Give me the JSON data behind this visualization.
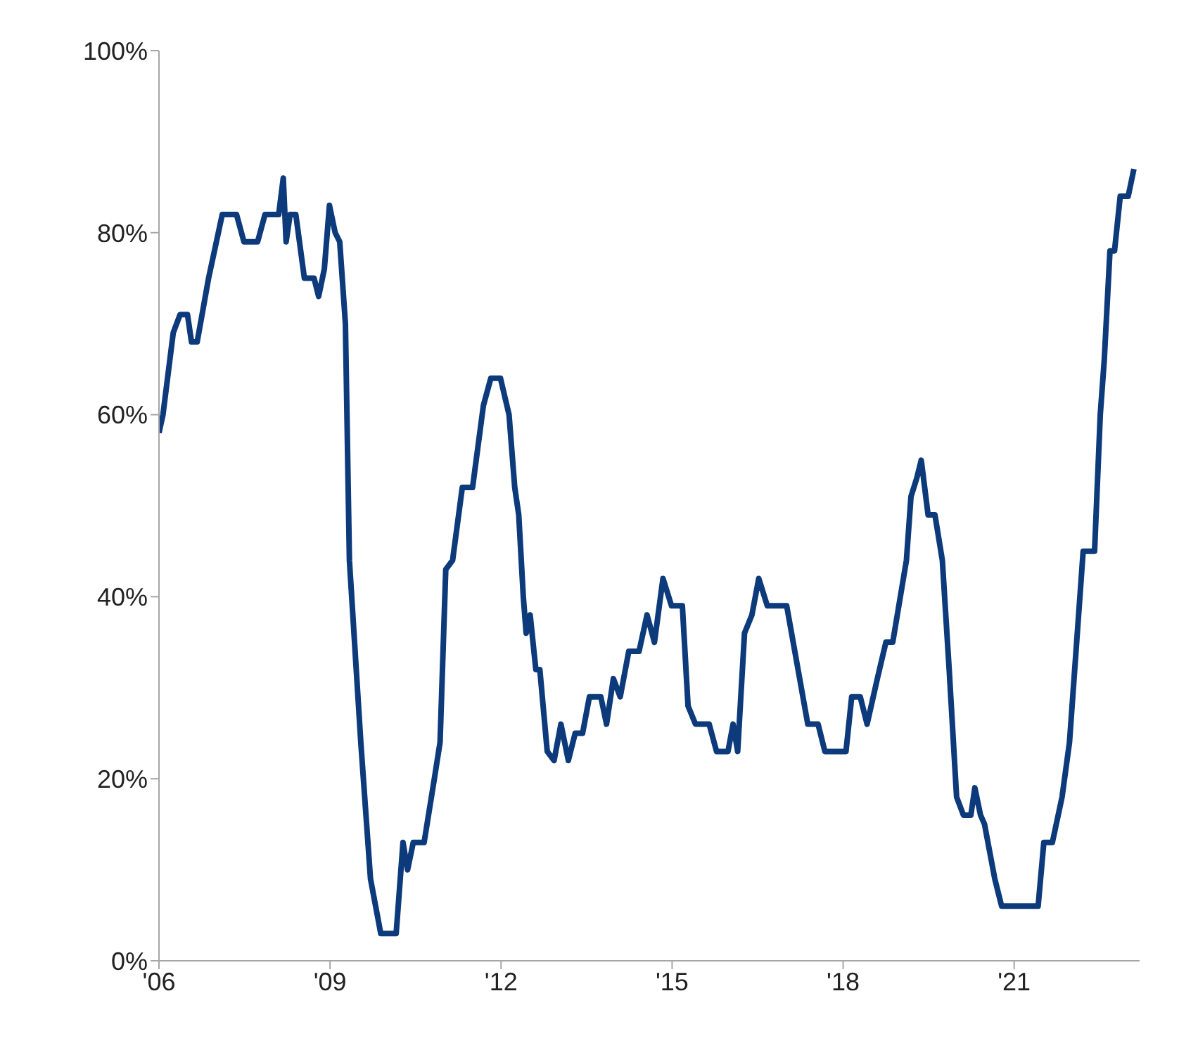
{
  "chart_data": {
    "type": "line",
    "x": [
      2006.0,
      2006.07,
      2006.25,
      2006.37,
      2006.5,
      2006.57,
      2006.67,
      2006.87,
      2007.11,
      2007.36,
      2007.49,
      2007.73,
      2007.86,
      2008.1,
      2008.18,
      2008.23,
      2008.3,
      2008.4,
      2008.55,
      2008.72,
      2008.8,
      2008.9,
      2008.99,
      2009.09,
      2009.17,
      2009.27,
      2009.34,
      2009.54,
      2009.71,
      2009.89,
      2010.16,
      2010.28,
      2010.36,
      2010.46,
      2010.65,
      2010.83,
      2010.93,
      2011.03,
      2011.15,
      2011.32,
      2011.5,
      2011.69,
      2011.82,
      2011.99,
      2012.14,
      2012.24,
      2012.31,
      2012.39,
      2012.44,
      2012.51,
      2012.61,
      2012.68,
      2012.81,
      2012.93,
      2013.05,
      2013.18,
      2013.3,
      2013.43,
      2013.55,
      2013.75,
      2013.85,
      2013.97,
      2014.09,
      2014.24,
      2014.42,
      2014.56,
      2014.69,
      2014.84,
      2014.99,
      2015.18,
      2015.28,
      2015.41,
      2015.65,
      2015.78,
      2015.98,
      2016.07,
      2016.15,
      2016.27,
      2016.4,
      2016.52,
      2016.67,
      2017.01,
      2017.38,
      2017.56,
      2017.68,
      2018.05,
      2018.15,
      2018.3,
      2018.42,
      2018.6,
      2018.75,
      2018.87,
      2019.11,
      2019.19,
      2019.29,
      2019.37,
      2019.49,
      2019.61,
      2019.74,
      2019.86,
      2019.99,
      2020.11,
      2020.24,
      2020.31,
      2020.41,
      2020.48,
      2020.66,
      2020.78,
      2021.42,
      2021.52,
      2021.67,
      2021.84,
      2021.97,
      2022.21,
      2022.41,
      2022.51,
      2022.58,
      2022.68,
      2022.76,
      2022.86,
      2023.0,
      2023.1
    ],
    "series": [
      {
        "color": "#0c3a7a",
        "values": [
          58,
          60,
          69,
          71,
          71,
          68,
          68,
          75,
          82,
          82,
          79,
          79,
          82,
          82,
          86,
          79,
          82,
          82,
          75,
          75,
          73,
          76,
          83,
          80,
          79,
          70,
          44,
          24,
          9,
          3,
          3,
          13,
          10,
          13,
          13,
          20,
          24,
          43,
          44,
          52,
          52,
          61,
          64,
          64,
          60,
          52,
          49,
          40,
          36,
          38,
          32,
          32,
          23,
          22,
          26,
          22,
          25,
          25,
          29,
          29,
          26,
          31,
          29,
          34,
          34,
          38,
          35,
          42,
          39,
          39,
          28,
          26,
          26,
          23,
          23,
          26,
          23,
          36,
          38,
          42,
          39,
          39,
          26,
          26,
          23,
          23,
          29,
          29,
          26,
          31,
          35,
          35,
          44,
          51,
          53,
          55,
          49,
          49,
          44,
          32,
          18,
          16,
          16,
          19,
          16,
          15,
          9,
          6,
          6,
          13,
          13,
          18,
          24,
          45,
          45,
          60,
          66,
          78,
          78,
          84,
          84,
          87
        ]
      }
    ],
    "xlim": [
      2006,
      2023.2
    ],
    "xticks": [
      {
        "value": 2006,
        "label": "'06"
      },
      {
        "value": 2009,
        "label": "'09"
      },
      {
        "value": 2012,
        "label": "'12"
      },
      {
        "value": 2015,
        "label": "'15"
      },
      {
        "value": 2018,
        "label": "'18"
      },
      {
        "value": 2021,
        "label": "'21"
      }
    ],
    "ylim": [
      0,
      100
    ],
    "yticks": [
      {
        "value": 0,
        "label": "0%"
      },
      {
        "value": 20,
        "label": "20%"
      },
      {
        "value": 40,
        "label": "40%"
      },
      {
        "value": 60,
        "label": "60%"
      },
      {
        "value": 80,
        "label": "80%"
      },
      {
        "value": 100,
        "label": "100%"
      }
    ],
    "grid": false,
    "legend": false,
    "marker": "none",
    "line_style": "solid"
  }
}
